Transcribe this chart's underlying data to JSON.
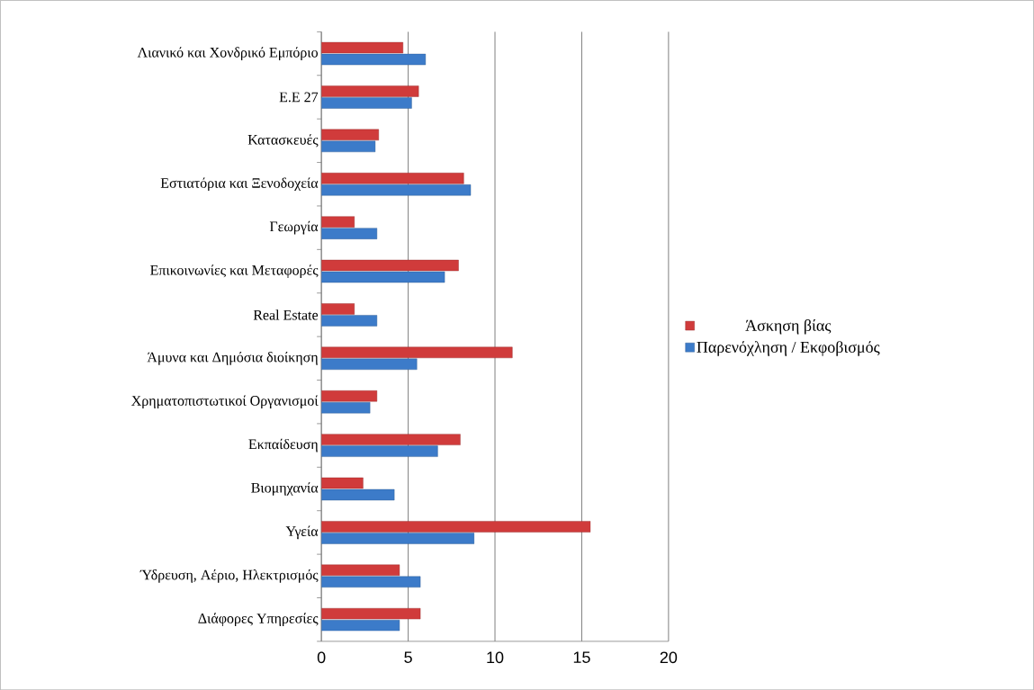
{
  "chart_data": {
    "type": "bar",
    "orientation": "horizontal",
    "categories": [
      "Λιανικό και Χονδρικό Εμπόριο",
      "Ε.Ε 27",
      "Κατασκευές",
      "Εστιατόρια και Ξενοδοχεία",
      "Γεωργία",
      "Επικοινωνίες και Μεταφορές",
      "Real Estate",
      "Άμυνα και Δημόσια διοίκηση",
      "Χρηματοπιστωτικοί Οργανισμοί",
      "Εκπαίδευση",
      "Βιομηχανία",
      "Υγεία",
      "Ύδρευση, Αέριο, Ηλεκτρισμός",
      "Διάφορες Υπηρεσίες"
    ],
    "series": [
      {
        "name": "Άσκηση βίας",
        "color": "#d03b3b",
        "values": [
          4.7,
          5.6,
          3.3,
          8.2,
          1.9,
          7.9,
          1.9,
          11.0,
          3.2,
          8.0,
          2.4,
          15.5,
          4.5,
          5.7
        ]
      },
      {
        "name": "Παρενόχληση / Εκφοβισμός",
        "color": "#3c7bc9",
        "values": [
          6.0,
          5.2,
          3.1,
          8.6,
          3.2,
          7.1,
          3.2,
          5.5,
          2.8,
          6.7,
          4.2,
          8.8,
          5.7,
          4.5
        ]
      }
    ],
    "xlim": [
      0,
      20
    ],
    "xticks": [
      0,
      5,
      10,
      15,
      20
    ],
    "grid": "x",
    "legend": "right"
  }
}
